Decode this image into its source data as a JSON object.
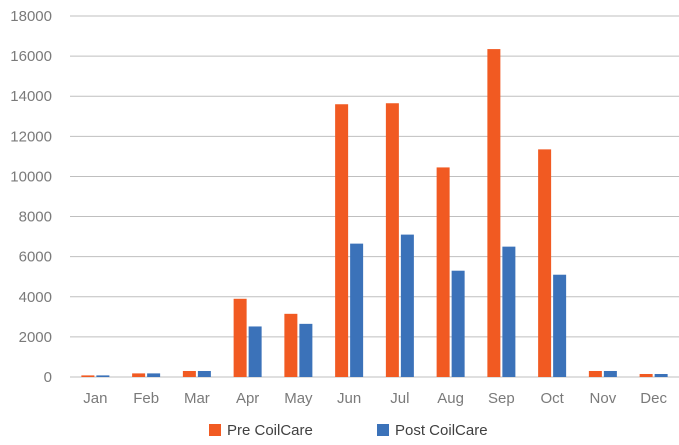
{
  "chart_data": {
    "type": "bar",
    "title": "",
    "xlabel": "",
    "ylabel": "",
    "categories": [
      "Jan",
      "Feb",
      "Mar",
      "Apr",
      "May",
      "Jun",
      "Jul",
      "Aug",
      "Sep",
      "Oct",
      "Nov",
      "Dec"
    ],
    "series": [
      {
        "name": "Pre CoilCare",
        "color": "#f15a22",
        "values": [
          80,
          180,
          300,
          3900,
          3150,
          13600,
          13650,
          10450,
          16350,
          11350,
          300,
          150
        ]
      },
      {
        "name": "Post CoilCare",
        "color": "#3b72b9",
        "values": [
          80,
          180,
          300,
          2520,
          2650,
          6650,
          7100,
          5300,
          6500,
          5100,
          300,
          150
        ]
      }
    ],
    "ylim": [
      0,
      18000
    ],
    "yticks": [
      0,
      2000,
      4000,
      6000,
      8000,
      10000,
      12000,
      14000,
      16000,
      18000
    ],
    "grid": true,
    "legend_position": "bottom"
  }
}
